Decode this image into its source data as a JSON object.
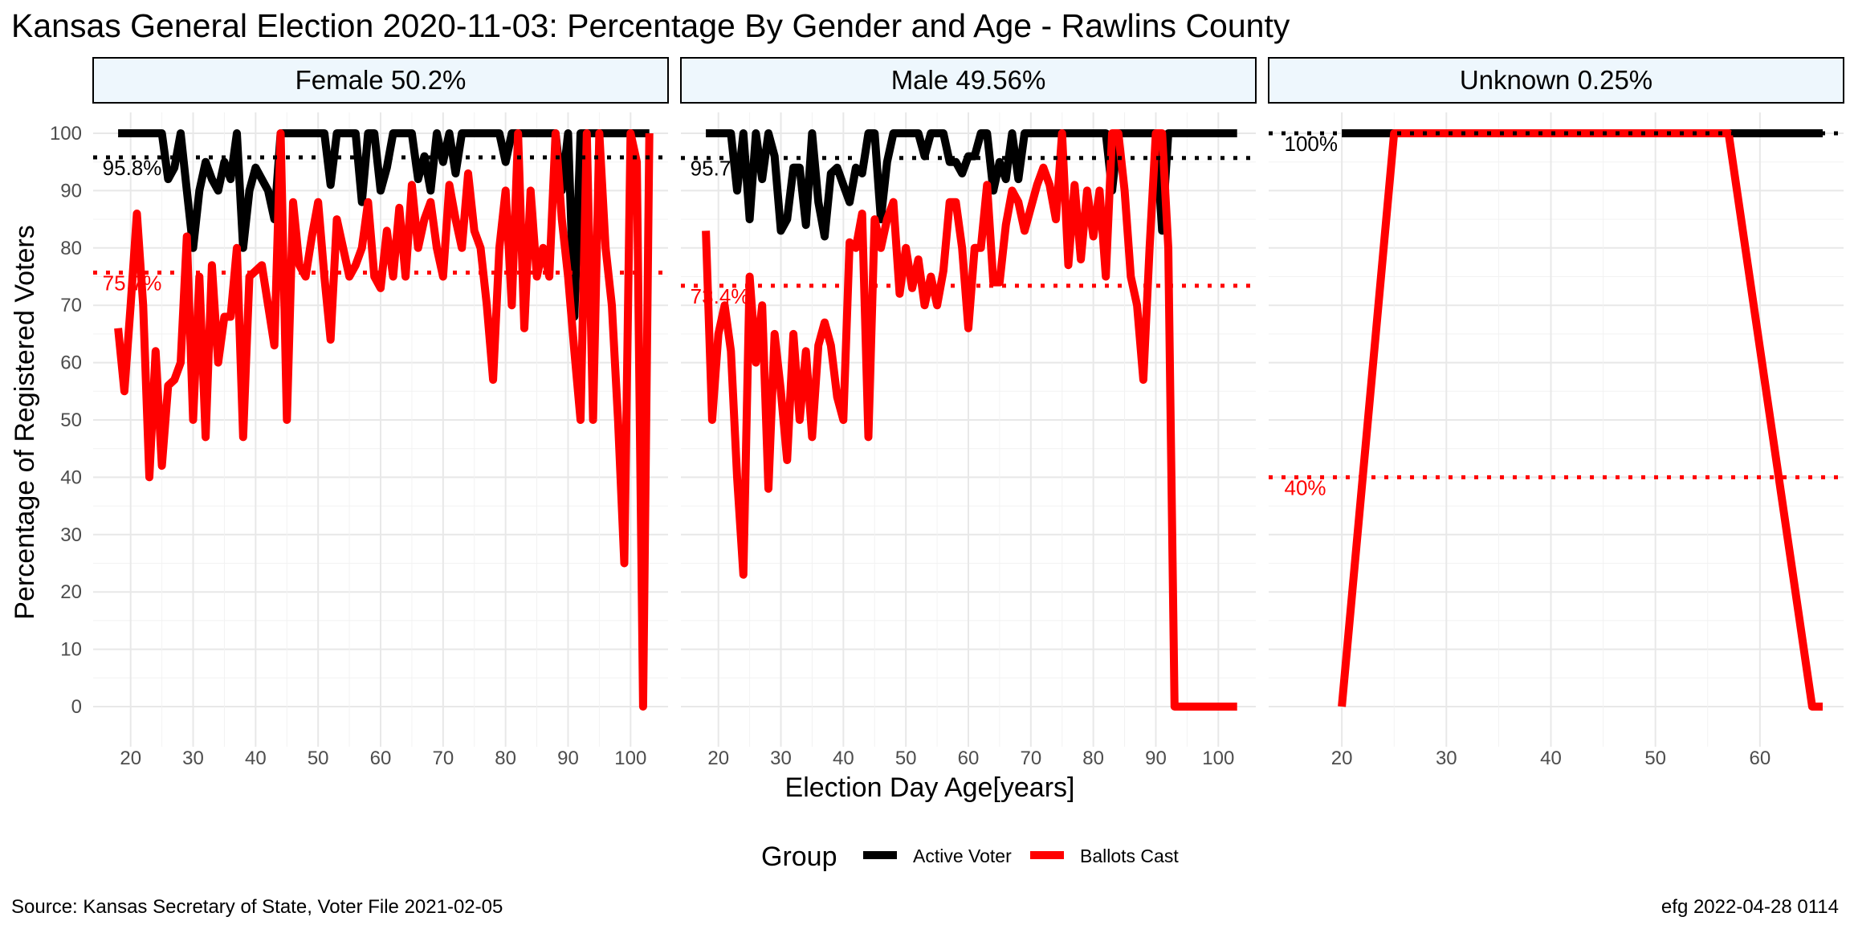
{
  "title": "Kansas General Election 2020-11-03:  Percentage By Gender and Age - Rawlins County",
  "source": "Source:  Kansas Secretary of State, Voter File  2021-02-05",
  "credit": "efg 2022-04-28 0114",
  "colors": {
    "active": "#000000",
    "ballots": "#ff0000",
    "strip_fill": "#eef7fd",
    "grid": "#e8e8e8"
  },
  "chart_data": {
    "type": "line",
    "xlabel": "Election Day Age[years]",
    "ylabel": "Percentage of Registered Voters",
    "ylim": [
      0,
      100
    ],
    "y_ticks": [
      0,
      10,
      20,
      30,
      40,
      50,
      60,
      70,
      80,
      90,
      100
    ],
    "grid": true,
    "legend": {
      "title": "Group",
      "position": "bottom",
      "entries": [
        "Active Voter",
        "Ballots Cast"
      ]
    },
    "panels": [
      {
        "label": "Female 50.2%",
        "xlim": [
          14,
          106
        ],
        "x_ticks": [
          20,
          30,
          40,
          50,
          60,
          70,
          80,
          90,
          100
        ],
        "reference": {
          "active": 95.8,
          "ballots": 75.7
        },
        "ref_labels": {
          "active": "95.8%",
          "ballots": "75.7%"
        },
        "series": [
          {
            "name": "Active Voter",
            "x": [
              18,
              19,
              20,
              21,
              22,
              23,
              24,
              25,
              26,
              27,
              28,
              29,
              30,
              31,
              32,
              33,
              34,
              35,
              36,
              37,
              38,
              39,
              40,
              41,
              42,
              43,
              44,
              45,
              46,
              47,
              48,
              49,
              50,
              51,
              52,
              53,
              54,
              55,
              56,
              57,
              58,
              59,
              60,
              61,
              62,
              63,
              64,
              65,
              66,
              67,
              68,
              69,
              70,
              71,
              72,
              73,
              74,
              75,
              76,
              77,
              78,
              79,
              80,
              81,
              82,
              83,
              84,
              85,
              86,
              87,
              88,
              89,
              90,
              91,
              92,
              93,
              94,
              95,
              96,
              97,
              98,
              99,
              100,
              101,
              102,
              103
            ],
            "y": [
              100,
              100,
              100,
              100,
              100,
              100,
              100,
              100,
              92,
              94,
              100,
              90,
              80,
              90,
              95,
              92,
              90,
              95,
              92,
              100,
              80,
              90,
              94,
              92,
              90,
              85,
              100,
              100,
              100,
              100,
              100,
              100,
              100,
              100,
              91,
              100,
              100,
              100,
              100,
              88,
              100,
              100,
              90,
              94,
              100,
              100,
              100,
              100,
              92,
              96,
              90,
              100,
              95,
              100,
              93,
              100,
              100,
              100,
              100,
              100,
              100,
              100,
              95,
              100,
              100,
              100,
              100,
              100,
              100,
              100,
              100,
              90,
              100,
              68,
              100,
              100,
              100,
              100,
              100,
              100,
              100,
              100,
              100,
              100,
              100,
              100
            ]
          },
          {
            "name": "Ballots Cast",
            "x": [
              18,
              19,
              20,
              21,
              22,
              23,
              24,
              25,
              26,
              27,
              28,
              29,
              30,
              31,
              32,
              33,
              34,
              35,
              36,
              37,
              38,
              39,
              40,
              41,
              42,
              43,
              44,
              45,
              46,
              47,
              48,
              49,
              50,
              51,
              52,
              53,
              54,
              55,
              56,
              57,
              58,
              59,
              60,
              61,
              62,
              63,
              64,
              65,
              66,
              67,
              68,
              69,
              70,
              71,
              72,
              73,
              74,
              75,
              76,
              77,
              78,
              79,
              80,
              81,
              82,
              83,
              84,
              85,
              86,
              87,
              88,
              89,
              90,
              91,
              92,
              93,
              94,
              95,
              96,
              97,
              98,
              99,
              100,
              101,
              102,
              103
            ],
            "y": [
              66,
              55,
              70,
              86,
              70,
              40,
              62,
              42,
              56,
              57,
              60,
              82,
              50,
              75,
              47,
              77,
              60,
              68,
              68,
              80,
              47,
              75,
              76,
              77,
              70,
              63,
              100,
              50,
              88,
              77,
              75,
              82,
              88,
              75,
              64,
              85,
              80,
              75,
              77,
              80,
              88,
              75,
              73,
              83,
              75,
              87,
              75,
              91,
              80,
              85,
              88,
              80,
              75,
              91,
              85,
              80,
              93,
              83,
              80,
              70,
              57,
              80,
              90,
              70,
              100,
              66,
              90,
              75,
              80,
              75,
              100,
              85,
              75,
              62,
              50,
              100,
              50,
              100,
              80,
              70,
              50,
              25,
              100,
              95,
              0,
              100
            ]
          }
        ]
      },
      {
        "label": "Male 49.56%",
        "xlim": [
          14,
          106
        ],
        "x_ticks": [
          20,
          30,
          40,
          50,
          60,
          70,
          80,
          90,
          100
        ],
        "reference": {
          "active": 95.7,
          "ballots": 73.4
        },
        "ref_labels": {
          "active": "95.7%",
          "ballots": "73.4%"
        },
        "series": [
          {
            "name": "Active Voter",
            "x": [
              18,
              19,
              20,
              21,
              22,
              23,
              24,
              25,
              26,
              27,
              28,
              29,
              30,
              31,
              32,
              33,
              34,
              35,
              36,
              37,
              38,
              39,
              40,
              41,
              42,
              43,
              44,
              45,
              46,
              47,
              48,
              49,
              50,
              51,
              52,
              53,
              54,
              55,
              56,
              57,
              58,
              59,
              60,
              61,
              62,
              63,
              64,
              65,
              66,
              67,
              68,
              69,
              70,
              71,
              72,
              73,
              74,
              75,
              76,
              77,
              78,
              79,
              80,
              81,
              82,
              83,
              84,
              85,
              86,
              87,
              88,
              89,
              90,
              91,
              92,
              93,
              94,
              95,
              96,
              97,
              98,
              99,
              100,
              101,
              102,
              103
            ],
            "y": [
              100,
              100,
              100,
              100,
              100,
              90,
              100,
              85,
              100,
              92,
              100,
              96,
              83,
              85,
              94,
              94,
              84,
              100,
              88,
              82,
              93,
              94,
              91,
              88,
              94,
              93,
              100,
              100,
              85,
              95,
              100,
              100,
              100,
              100,
              100,
              96,
              100,
              100,
              100,
              95,
              95,
              93,
              96,
              96,
              100,
              100,
              90,
              95,
              92,
              100,
              92,
              100,
              100,
              100,
              100,
              100,
              100,
              100,
              100,
              100,
              100,
              100,
              100,
              100,
              100,
              90,
              100,
              100,
              100,
              100,
              100,
              100,
              100,
              83,
              100,
              100,
              100,
              100,
              100,
              100,
              100,
              100,
              100,
              100,
              100,
              100
            ]
          },
          {
            "name": "Ballots Cast",
            "x": [
              18,
              19,
              20,
              21,
              22,
              23,
              24,
              25,
              26,
              27,
              28,
              29,
              30,
              31,
              32,
              33,
              34,
              35,
              36,
              37,
              38,
              39,
              40,
              41,
              42,
              43,
              44,
              45,
              46,
              47,
              48,
              49,
              50,
              51,
              52,
              53,
              54,
              55,
              56,
              57,
              58,
              59,
              60,
              61,
              62,
              63,
              64,
              65,
              66,
              67,
              68,
              69,
              70,
              71,
              72,
              73,
              74,
              75,
              76,
              77,
              78,
              79,
              80,
              81,
              82,
              83,
              84,
              85,
              86,
              87,
              88,
              89,
              90,
              91,
              92,
              93,
              94,
              95,
              96,
              97,
              98,
              99,
              100,
              101,
              102,
              103
            ],
            "y": [
              83,
              50,
              65,
              70,
              62,
              40,
              23,
              75,
              60,
              70,
              38,
              65,
              55,
              43,
              65,
              50,
              62,
              47,
              63,
              67,
              63,
              54,
              50,
              81,
              80,
              86,
              47,
              85,
              80,
              85,
              88,
              72,
              80,
              73,
              78,
              70,
              75,
              70,
              76,
              88,
              88,
              80,
              66,
              80,
              80,
              91,
              74,
              74,
              84,
              90,
              88,
              83,
              87,
              91,
              94,
              91,
              85,
              100,
              77,
              91,
              78,
              90,
              82,
              90,
              75,
              100,
              100,
              90,
              75,
              70,
              57,
              80,
              100,
              100,
              80,
              0,
              0,
              0,
              0,
              0,
              0,
              0,
              0,
              0,
              0,
              0
            ]
          }
        ]
      },
      {
        "label": "Unknown 0.25%",
        "xlim": [
          13,
          68
        ],
        "x_ticks": [
          20,
          30,
          40,
          50,
          60
        ],
        "reference": {
          "active": 100,
          "ballots": 40
        },
        "ref_labels": {
          "active": "100%",
          "ballots": "40%"
        },
        "series": [
          {
            "name": "Active Voter",
            "x": [
              20,
              66
            ],
            "y": [
              100,
              100
            ]
          },
          {
            "name": "Ballots Cast",
            "x": [
              20,
              25,
              57,
              65,
              66
            ],
            "y": [
              0,
              100,
              100,
              0,
              0
            ]
          }
        ]
      }
    ]
  }
}
